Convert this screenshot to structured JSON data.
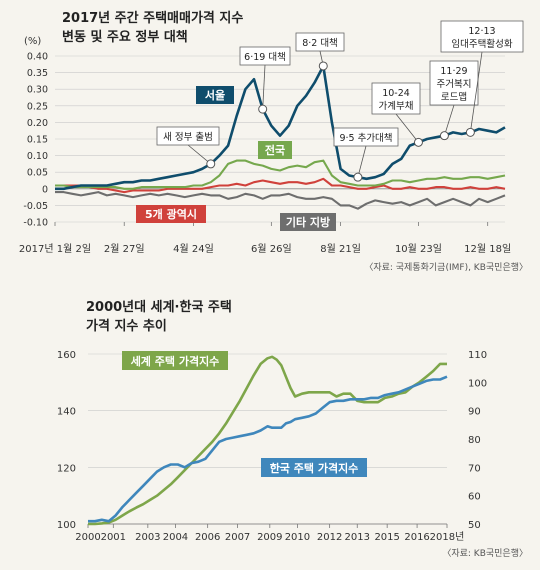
{
  "colors": {
    "background": "#f6f4ee",
    "seoul": "#0f4d6c",
    "national": "#76a84d",
    "metro5": "#d0413b",
    "other": "#6e6e6e",
    "world": "#7ea64a",
    "korea": "#3f87bc",
    "grid": "#c9c9c9"
  },
  "chart_data": [
    {
      "type": "line",
      "title": "2017년 주간 주택매매가격 지수",
      "subtitle": "변동 및 주요 정부 대책",
      "ylabel": "(%)",
      "ylim": [
        -0.1,
        0.4
      ],
      "yticks": [
        "0.40",
        "0.35",
        "0.30",
        "0.25",
        "0.20",
        "0.15",
        "0.10",
        "0.05",
        "0",
        "-0.05",
        "-0.10"
      ],
      "ytick_values": [
        0.4,
        0.35,
        0.3,
        0.25,
        0.2,
        0.15,
        0.1,
        0.05,
        0,
        -0.05,
        -0.1
      ],
      "xtick_labels": [
        "2017년 1월 2일",
        "2월 27일",
        "4월 24일",
        "6월 26일",
        "8월 21일",
        "10월 23일",
        "12월 18일"
      ],
      "xtick_weeks": [
        0,
        8,
        16,
        25,
        33,
        42,
        50
      ],
      "series": [
        {
          "name": "서울",
          "key": "seoul",
          "values": [
            0.0,
            0.0,
            0.005,
            0.01,
            0.01,
            0.01,
            0.01,
            0.015,
            0.02,
            0.02,
            0.025,
            0.025,
            0.03,
            0.035,
            0.04,
            0.045,
            0.05,
            0.06,
            0.075,
            0.1,
            0.13,
            0.22,
            0.3,
            0.33,
            0.24,
            0.19,
            0.16,
            0.19,
            0.25,
            0.28,
            0.32,
            0.37,
            0.2,
            0.06,
            0.04,
            0.035,
            0.03,
            0.035,
            0.045,
            0.075,
            0.09,
            0.13,
            0.14,
            0.15,
            0.155,
            0.16,
            0.17,
            0.165,
            0.17,
            0.18,
            0.175,
            0.17,
            0.185
          ]
        },
        {
          "name": "전국",
          "key": "national",
          "values": [
            0.01,
            0.01,
            0.005,
            0.005,
            0.005,
            0.005,
            0.005,
            0.005,
            0.0,
            0.0,
            0.005,
            0.005,
            0.005,
            0.005,
            0.005,
            0.005,
            0.01,
            0.01,
            0.02,
            0.04,
            0.075,
            0.085,
            0.085,
            0.075,
            0.07,
            0.06,
            0.055,
            0.065,
            0.07,
            0.065,
            0.08,
            0.085,
            0.04,
            0.02,
            0.015,
            0.01,
            0.01,
            0.01,
            0.015,
            0.025,
            0.025,
            0.02,
            0.025,
            0.03,
            0.03,
            0.035,
            0.03,
            0.03,
            0.035,
            0.035,
            0.03,
            0.035,
            0.04
          ]
        },
        {
          "name": "5개 광역시",
          "key": "metro5",
          "values": [
            0.01,
            0.01,
            0.01,
            0.01,
            0.005,
            0.0,
            0.0,
            -0.005,
            -0.01,
            -0.005,
            -0.005,
            -0.005,
            -0.005,
            0.0,
            0.0,
            0.0,
            0.0,
            0.0,
            0.005,
            0.01,
            0.01,
            0.015,
            0.01,
            0.02,
            0.025,
            0.02,
            0.015,
            0.02,
            0.02,
            0.015,
            0.02,
            0.03,
            0.01,
            0.01,
            0.005,
            0.0,
            0.0,
            0.005,
            0.01,
            0.0,
            0.0,
            0.005,
            0.0,
            0.0,
            0.005,
            0.005,
            0.0,
            0.0,
            0.005,
            0.0,
            0.0,
            0.005,
            0.0
          ]
        },
        {
          "name": "기타 지방",
          "key": "other",
          "values": [
            -0.01,
            -0.01,
            -0.015,
            -0.02,
            -0.015,
            -0.01,
            -0.02,
            -0.015,
            -0.02,
            -0.025,
            -0.02,
            -0.015,
            -0.02,
            -0.015,
            -0.02,
            -0.025,
            -0.02,
            -0.015,
            -0.02,
            -0.02,
            -0.03,
            -0.025,
            -0.015,
            -0.02,
            -0.03,
            -0.02,
            -0.02,
            -0.015,
            -0.025,
            -0.03,
            -0.03,
            -0.025,
            -0.03,
            -0.05,
            -0.05,
            -0.06,
            -0.045,
            -0.035,
            -0.04,
            -0.045,
            -0.04,
            -0.05,
            -0.04,
            -0.03,
            -0.05,
            -0.04,
            -0.03,
            -0.04,
            -0.05,
            -0.03,
            -0.04,
            -0.03,
            -0.02
          ]
        }
      ],
      "annotations": [
        {
          "label": "새 정부 출범",
          "week": 18
        },
        {
          "label": "6·19 대책",
          "week": 24
        },
        {
          "label": "8·2 대책",
          "week": 31
        },
        {
          "label": "9·5 추가대책",
          "week": 35
        },
        {
          "label": "10-24 가계부채",
          "week": 42
        },
        {
          "label": "11·29 주거복지 로드맵",
          "week": 45
        },
        {
          "label": "12·13 임대주택활성화",
          "week": 48
        }
      ],
      "source": "〈자료: 국제통화기금(IMF), KB국민은행〉"
    },
    {
      "type": "line",
      "title": "2000년대 세계·한국 주택",
      "subtitle": "가격 지수 추이",
      "ylim_left": [
        100,
        160
      ],
      "ylim_right": [
        50,
        110
      ],
      "yticks_left": [
        "160",
        "140",
        "120",
        "100"
      ],
      "yticks_right": [
        "110",
        "100",
        "90",
        "80",
        "70",
        "60",
        "50"
      ],
      "xtick_labels": [
        "2000",
        "2001",
        "2003",
        "2004",
        "2006",
        "2007",
        "2009",
        "2010",
        "2012",
        "2013",
        "2015",
        "2016",
        "2018년"
      ],
      "xtick_years": [
        2000.0,
        2001.1,
        2002.6,
        2003.8,
        2005.2,
        2006.5,
        2007.9,
        2009.1,
        2010.5,
        2011.7,
        2013.0,
        2014.3,
        2015.6
      ],
      "series": [
        {
          "name": "세계 주택 가격지수",
          "key": "world",
          "axis": "left",
          "x": [
            2000.0,
            2000.3,
            2000.6,
            2000.9,
            2001.2,
            2001.5,
            2001.8,
            2002.1,
            2002.4,
            2002.7,
            2003.0,
            2003.3,
            2003.6,
            2003.9,
            2004.2,
            2004.5,
            2004.8,
            2005.1,
            2005.4,
            2005.7,
            2006.0,
            2006.3,
            2006.6,
            2006.9,
            2007.2,
            2007.5,
            2007.8,
            2008.0,
            2008.2,
            2008.4,
            2008.6,
            2008.8,
            2009.0,
            2009.3,
            2009.6,
            2009.9,
            2010.2,
            2010.5,
            2010.8,
            2011.1,
            2011.4,
            2011.7,
            2012.0,
            2012.3,
            2012.6,
            2012.9,
            2013.2,
            2013.5,
            2013.8,
            2014.1,
            2014.4,
            2014.7,
            2015.0,
            2015.3,
            2015.6
          ],
          "values": [
            100.0,
            100.0,
            100.2,
            100.5,
            101.5,
            103.0,
            104.5,
            105.8,
            107.0,
            108.5,
            110.0,
            112.0,
            114.0,
            116.5,
            119.0,
            121.5,
            124.0,
            126.5,
            129.0,
            132.0,
            135.5,
            139.5,
            143.5,
            148.0,
            152.5,
            156.5,
            158.5,
            159.0,
            158.0,
            156.0,
            152.0,
            148.0,
            145.0,
            146.0,
            146.5,
            146.5,
            146.5,
            146.5,
            145.0,
            146.0,
            146.0,
            143.5,
            143.0,
            143.0,
            143.0,
            144.5,
            145.0,
            146.0,
            146.5,
            148.5,
            150.0,
            152.0,
            154.0,
            156.5,
            156.5
          ]
        },
        {
          "name": "한국 주택 가격지수",
          "key": "korea",
          "axis": "right",
          "x": [
            2000.0,
            2000.3,
            2000.6,
            2000.9,
            2001.2,
            2001.5,
            2001.8,
            2002.1,
            2002.4,
            2002.7,
            2003.0,
            2003.3,
            2003.6,
            2003.9,
            2004.2,
            2004.5,
            2004.8,
            2005.1,
            2005.4,
            2005.7,
            2006.0,
            2006.3,
            2006.6,
            2006.9,
            2007.2,
            2007.5,
            2007.8,
            2008.0,
            2008.2,
            2008.4,
            2008.6,
            2008.8,
            2009.0,
            2009.3,
            2009.6,
            2009.9,
            2010.2,
            2010.5,
            2010.8,
            2011.1,
            2011.4,
            2011.7,
            2012.0,
            2012.3,
            2012.6,
            2012.9,
            2013.2,
            2013.5,
            2013.8,
            2014.1,
            2014.4,
            2014.7,
            2015.0,
            2015.3,
            2015.6
          ],
          "values": [
            51.0,
            51.0,
            51.5,
            51.0,
            53.0,
            56.0,
            58.5,
            61.0,
            63.5,
            66.0,
            68.5,
            70.0,
            71.0,
            71.0,
            70.0,
            71.5,
            72.0,
            73.0,
            76.0,
            79.0,
            80.0,
            80.5,
            81.0,
            81.5,
            82.0,
            83.0,
            84.5,
            84.0,
            84.0,
            84.0,
            85.5,
            86.0,
            87.0,
            87.5,
            88.0,
            89.0,
            91.0,
            93.0,
            93.5,
            93.5,
            94.0,
            94.0,
            94.0,
            94.5,
            94.5,
            95.5,
            96.0,
            96.5,
            97.5,
            98.5,
            99.5,
            100.5,
            101.0,
            101.0,
            102.0
          ]
        }
      ],
      "source": "〈자료: KB국민은행〉"
    }
  ]
}
